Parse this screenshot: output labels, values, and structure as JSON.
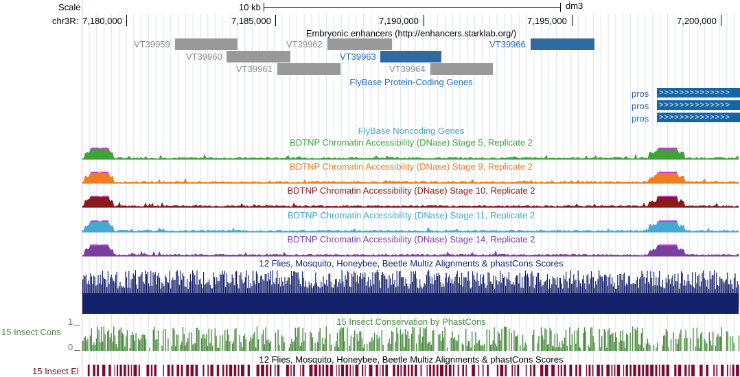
{
  "scale": {
    "label": "Scale",
    "bar_label": "10 kb",
    "assembly": "dm3"
  },
  "ruler": {
    "chrom_label": "chr3R:",
    "ticks": [
      "7,180,000",
      "7,185,000",
      "7,190,000",
      "7,195,000",
      "7,200,000"
    ]
  },
  "tracks": {
    "enhancers": {
      "title": "Embryonic enhancers (http://enhancers.starklab.org/)",
      "items": [
        {
          "name": "VT39959",
          "highlight": false
        },
        {
          "name": "VT39960",
          "highlight": false
        },
        {
          "name": "VT39961",
          "highlight": false
        },
        {
          "name": "VT39962",
          "highlight": false
        },
        {
          "name": "VT39963",
          "highlight": true
        },
        {
          "name": "VT39964",
          "highlight": false
        },
        {
          "name": "VT39966",
          "highlight": true
        }
      ]
    },
    "protein_coding": {
      "title": "FlyBase Protein-Coding Genes",
      "genes": [
        "pros",
        "pros",
        "pros"
      ],
      "strand_glyphs": ">>>>>>>>>>>>>>"
    },
    "noncoding": {
      "title": "FlyBase Noncoding Genes"
    },
    "dnase": [
      {
        "title": "BDTNP Chromatin Accessibility (DNase) Stage 5, Replicate 2",
        "color": "#3fa33a"
      },
      {
        "title": "BDTNP Chromatin Accessibility (DNase) Stage 9, Replicate 2",
        "color": "#f07d22"
      },
      {
        "title": "BDTNP Chromatin Accessibility (DNase) Stage 10, Replicate 2",
        "color": "#8b1a1a"
      },
      {
        "title": "BDTNP Chromatin Accessibility (DNase) Stage 11, Replicate 2",
        "color": "#47a9cf"
      },
      {
        "title": "BDTNP Chromatin Accessibility (DNase) Stage 14, Replicate 2",
        "color": "#7b3fa0"
      }
    ],
    "multiz": {
      "title": "12 Flies, Mosquito, Honeybee, Beetle Multiz Alignments & phastCons Scores",
      "color": "#14216b"
    },
    "insect_cons": {
      "title": "15 Insect Conservation by PhastCons",
      "side_label": "15 Insect Cons",
      "axis_max": "1",
      "axis_min": "0",
      "color": "#4a8a3e"
    },
    "insect_el": {
      "title": "12 Flies, Mosquito, Honeybee, Beetle Multiz Alignments & phastCons Scores",
      "side_label": "15 Insect El",
      "color": "#7a0a2e"
    }
  },
  "colors": {
    "grey_element": "#999999",
    "blue_element": "#2f6aa2",
    "grey_text": "#8c8c8c",
    "blue_text": "#1f6bb5",
    "gene_blue": "#1565a8",
    "peak_top": "#d12fd8",
    "guide_line": "#dde0f4"
  }
}
